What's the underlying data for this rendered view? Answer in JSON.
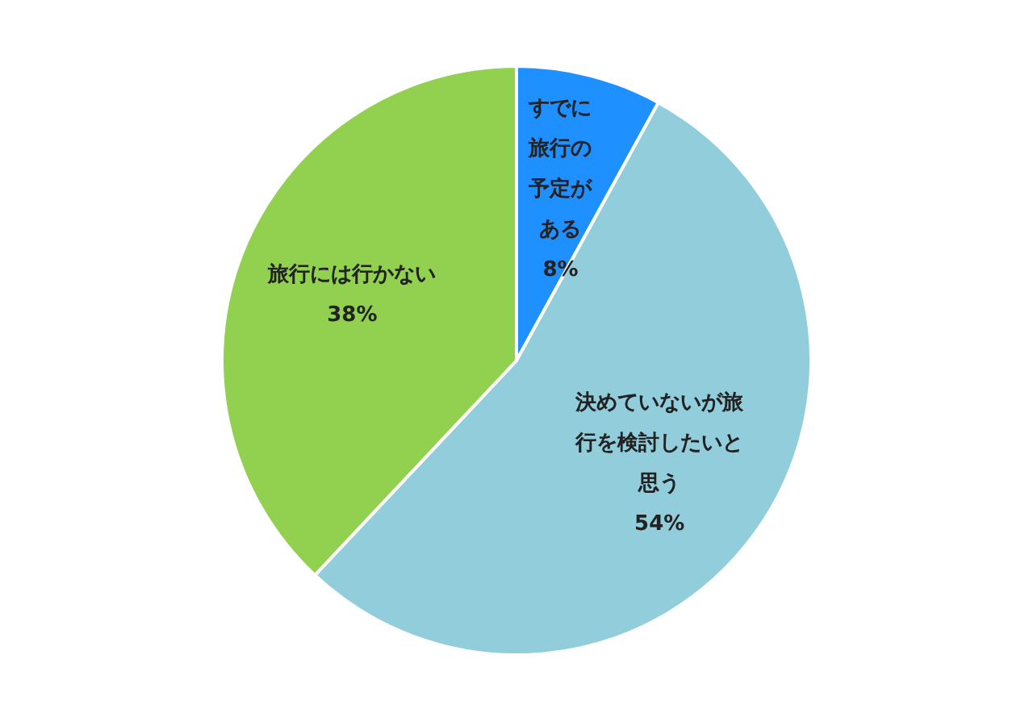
{
  "chart_data": {
    "type": "pie",
    "categories": [
      "すでに旅行の予定がある",
      "決めていないが旅行を検討したいと思う",
      "旅行には行かない"
    ],
    "values": [
      8,
      54,
      38
    ],
    "colors": [
      "#1e90ff",
      "#92cddc",
      "#92d050"
    ],
    "value_labels": [
      "8%",
      "54%",
      "38%"
    ],
    "legend": false
  }
}
